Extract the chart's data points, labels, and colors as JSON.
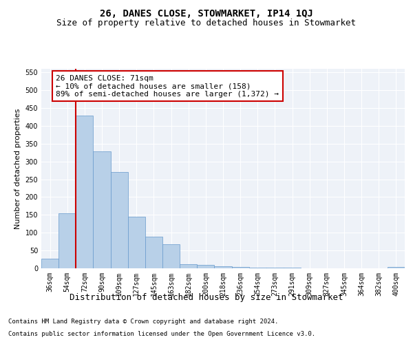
{
  "title": "26, DANES CLOSE, STOWMARKET, IP14 1QJ",
  "subtitle": "Size of property relative to detached houses in Stowmarket",
  "xlabel": "Distribution of detached houses by size in Stowmarket",
  "ylabel": "Number of detached properties",
  "footnote1": "Contains HM Land Registry data © Crown copyright and database right 2024.",
  "footnote2": "Contains public sector information licensed under the Open Government Licence v3.0.",
  "categories": [
    "36sqm",
    "54sqm",
    "72sqm",
    "90sqm",
    "109sqm",
    "127sqm",
    "145sqm",
    "163sqm",
    "182sqm",
    "200sqm",
    "218sqm",
    "236sqm",
    "254sqm",
    "273sqm",
    "291sqm",
    "309sqm",
    "327sqm",
    "345sqm",
    "364sqm",
    "382sqm",
    "400sqm"
  ],
  "values": [
    28,
    155,
    428,
    328,
    270,
    145,
    88,
    67,
    12,
    9,
    6,
    3,
    2,
    1,
    1,
    0,
    0,
    0,
    0,
    0,
    3
  ],
  "bar_color": "#b8d0e8",
  "bar_edge_color": "#6699cc",
  "property_line_color": "#cc0000",
  "ylim": [
    0,
    560
  ],
  "yticks": [
    0,
    50,
    100,
    150,
    200,
    250,
    300,
    350,
    400,
    450,
    500,
    550
  ],
  "annotation_text": "26 DANES CLOSE: 71sqm\n← 10% of detached houses are smaller (158)\n89% of semi-detached houses are larger (1,372) →",
  "annotation_box_color": "#cc0000",
  "background_color": "#eef2f8",
  "grid_color": "#ffffff",
  "title_fontsize": 10,
  "subtitle_fontsize": 9,
  "annotation_fontsize": 8,
  "ylabel_fontsize": 8,
  "xlabel_fontsize": 9,
  "tick_fontsize": 7,
  "footnote_fontsize": 6.5
}
